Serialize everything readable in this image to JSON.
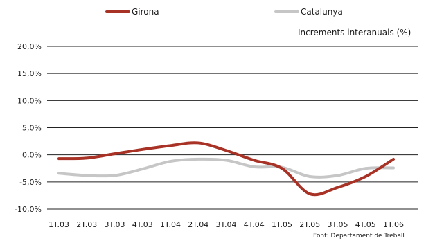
{
  "chart_data": {
    "type": "line",
    "subtitle": "Increments interanuals (%)",
    "source": "Font: Departament de Treball",
    "categories": [
      "1T.03",
      "2T.03",
      "3T.03",
      "4T.03",
      "1T.04",
      "2T.04",
      "3T.04",
      "4T.04",
      "1T.05",
      "2T.05",
      "3T.05",
      "4T.05",
      "1T.06"
    ],
    "y_tick_labels": [
      "20,0%",
      "15,0%",
      "10,0%",
      "5,0%",
      "0,0%",
      "-5,0%",
      "-10,0%"
    ],
    "y_ticks": [
      20,
      15,
      10,
      5,
      0,
      -5,
      -10
    ],
    "ylim": [
      -10,
      20
    ],
    "legend_position": "top",
    "grid": true,
    "series": [
      {
        "name": "Girona",
        "color": "#a83226",
        "values": [
          -0.7,
          -0.6,
          0.2,
          1.0,
          1.7,
          2.2,
          0.8,
          -1.0,
          -2.5,
          -7.2,
          -6.0,
          -4.0,
          -0.8
        ]
      },
      {
        "name": "Catalunya",
        "color": "#c6c6c6",
        "values": [
          -3.4,
          -3.8,
          -3.8,
          -2.6,
          -1.2,
          -0.8,
          -1.0,
          -2.2,
          -2.3,
          -4.0,
          -3.8,
          -2.5,
          -2.4
        ]
      }
    ]
  }
}
